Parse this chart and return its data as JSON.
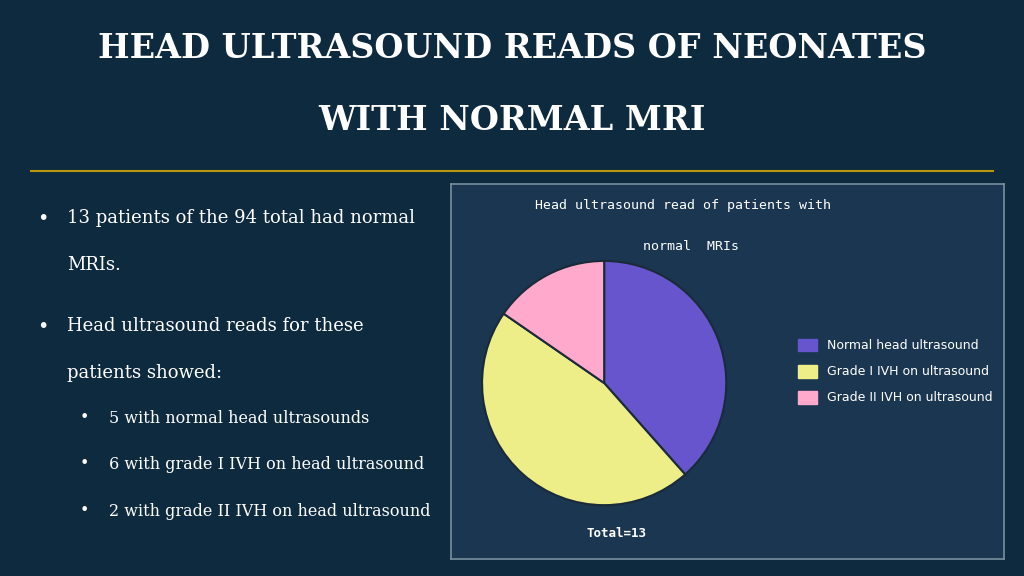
{
  "title_line1": "HEAD ULTRASOUND READS OF NEONATES",
  "title_line2": "WITH NORMAL MRI",
  "title_color": "#ffffff",
  "title_fontsize": 24,
  "bg_color": "#0e2a3f",
  "bullet1_main": "13 patients of the 94 total had normal",
  "bullet1_cont": "MRIs.",
  "bullet2_main": "Head ultrasound reads for these",
  "bullet2_cont": "patients showed:",
  "sub_bullet1": "5 with normal head ultrasounds",
  "sub_bullet2": "6 with grade I IVH on head ultrasound",
  "sub_bullet3": "2 with grade II IVH on head ultrasound",
  "pie_values": [
    5,
    6,
    2
  ],
  "pie_colors": [
    "#6655cc",
    "#eeee88",
    "#ffaacc"
  ],
  "pie_labels": [
    "Normal head ultrasound",
    "Grade I IVH on ultrasound",
    "Grade II IVH on ultrasound"
  ],
  "pie_title_line1": "Head ultrasound read of patients with",
  "pie_title_line2": "  normal  MRIs",
  "pie_total_label": "Total=13",
  "chart_bg": "#1a3650",
  "chart_border": "#7a8fa0",
  "text_color": "#ffffff",
  "legend_text_color": "#ffffff",
  "divider_color": "#b8960c"
}
